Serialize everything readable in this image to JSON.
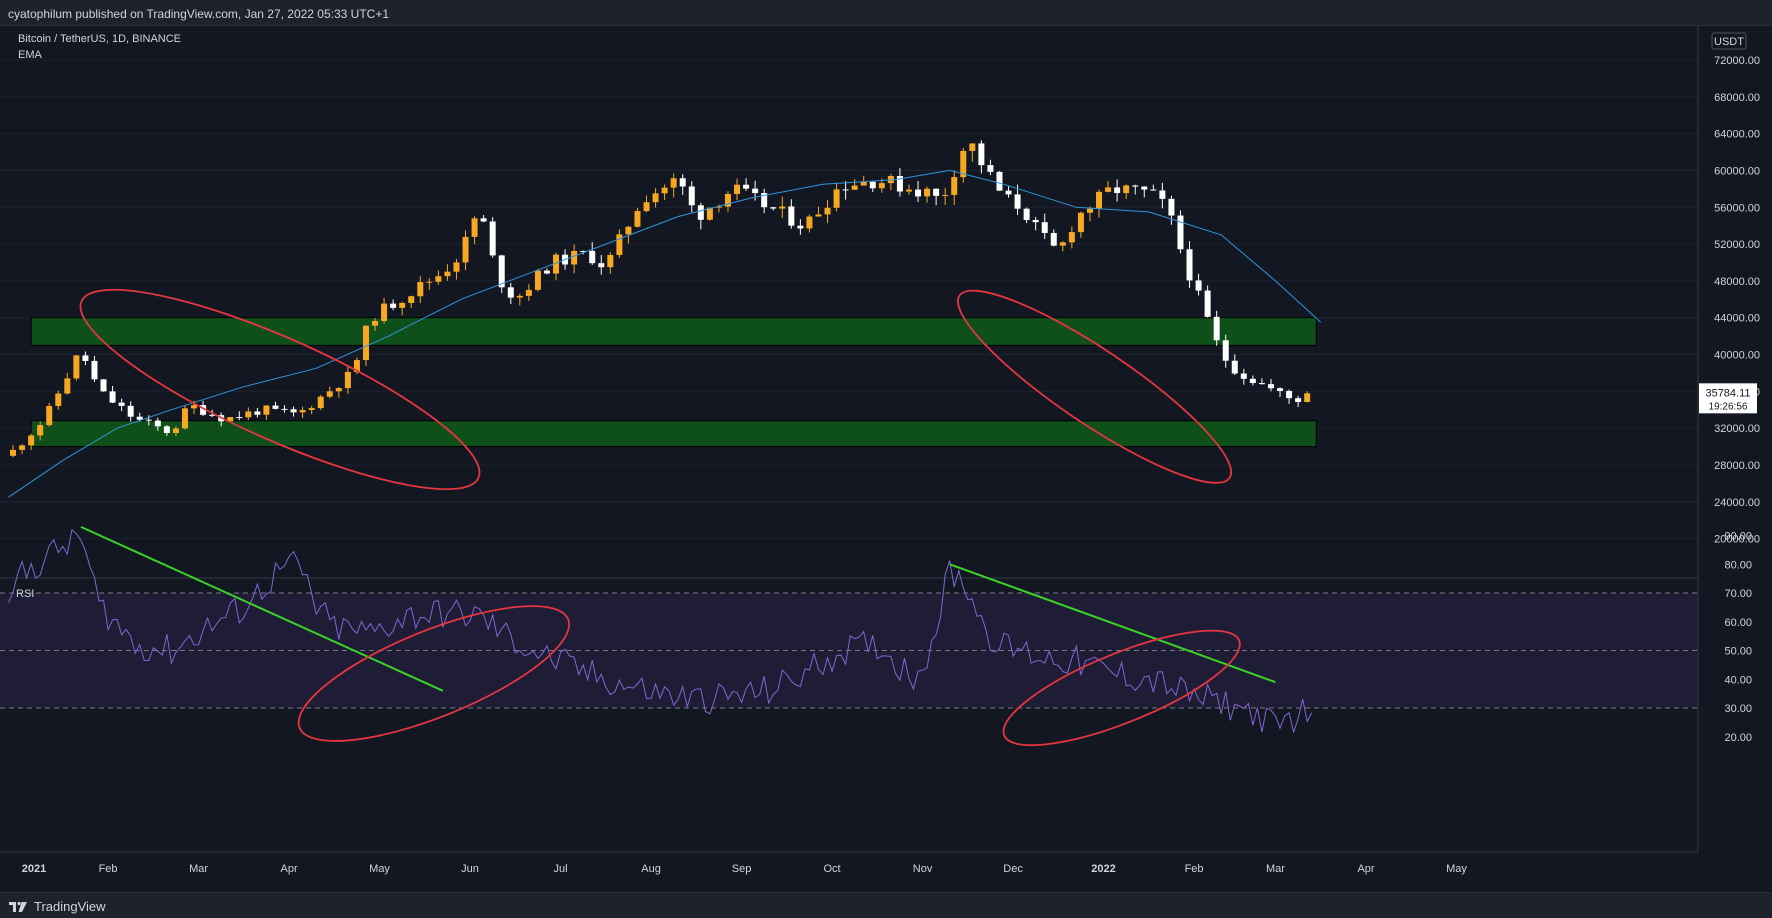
{
  "header": {
    "publisher_text": "cyatophilum published on TradingView.com, Jan 27, 2022 05:33 UTC+1"
  },
  "footer": {
    "brand": "TradingView"
  },
  "chart_data": [
    {
      "type": "candlestick",
      "symbol_label": "Bitcoin / TetherUS, 1D, BINANCE",
      "indicator_label": "EMA",
      "currency_label": "USDT",
      "ylim": [
        18000,
        74000
      ],
      "y_ticks": [
        20000,
        24000,
        28000,
        32000,
        36000,
        40000,
        44000,
        48000,
        52000,
        56000,
        60000,
        64000,
        68000,
        72000
      ],
      "y_tick_labels": [
        "20000.00",
        "24000.00",
        "28000.00",
        "32000.00",
        "36000.00",
        "40000.00",
        "44000.00",
        "48000.00",
        "52000.00",
        "56000.00",
        "60000.00",
        "64000.00",
        "68000.00",
        "72000.00"
      ],
      "x_range_days": [
        -3,
        145
      ],
      "price_path": [
        [
          0,
          29000
        ],
        [
          4,
          33000
        ],
        [
          8,
          40500
        ],
        [
          10,
          36000
        ],
        [
          14,
          33000
        ],
        [
          18,
          31500
        ],
        [
          20,
          34500
        ],
        [
          24,
          33000
        ],
        [
          28,
          34000
        ],
        [
          32,
          33500
        ],
        [
          38,
          38000
        ],
        [
          40,
          44000
        ],
        [
          44,
          46500
        ],
        [
          48,
          49000
        ],
        [
          50,
          51000
        ],
        [
          52,
          56000
        ],
        [
          54,
          48500
        ],
        [
          56,
          46000
        ],
        [
          58,
          48000
        ],
        [
          60,
          50000
        ],
        [
          64,
          51000
        ],
        [
          66,
          49500
        ],
        [
          70,
          57000
        ],
        [
          74,
          59000
        ],
        [
          76,
          55000
        ],
        [
          80,
          58000
        ],
        [
          84,
          56000
        ],
        [
          88,
          54000
        ],
        [
          92,
          58500
        ],
        [
          96,
          59000
        ],
        [
          100,
          58000
        ],
        [
          102,
          57500
        ],
        [
          103,
          56500
        ],
        [
          104,
          59000
        ],
        [
          106,
          63500
        ],
        [
          108,
          60000
        ],
        [
          110,
          57000
        ],
        [
          112,
          56000
        ],
        [
          114,
          53000
        ],
        [
          116,
          51000
        ],
        [
          118,
          55000
        ],
        [
          120,
          56500
        ],
        [
          122,
          58000
        ],
        [
          126,
          57500
        ],
        [
          128,
          56000
        ],
        [
          130,
          50000
        ],
        [
          132,
          45000
        ],
        [
          134,
          40000
        ],
        [
          136,
          38000
        ],
        [
          138,
          37000
        ],
        [
          140,
          36000
        ],
        [
          142,
          35000
        ],
        [
          144,
          35600
        ]
      ],
      "ema_path": [
        [
          0,
          24500
        ],
        [
          6,
          28500
        ],
        [
          12,
          32000
        ],
        [
          18,
          34000
        ],
        [
          26,
          36500
        ],
        [
          34,
          38500
        ],
        [
          42,
          42000
        ],
        [
          50,
          46000
        ],
        [
          58,
          49000
        ],
        [
          66,
          52000
        ],
        [
          74,
          55000
        ],
        [
          82,
          57000
        ],
        [
          90,
          58500
        ],
        [
          98,
          59000
        ],
        [
          104,
          60000
        ],
        [
          110,
          58500
        ],
        [
          118,
          56000
        ],
        [
          126,
          55500
        ],
        [
          134,
          53000
        ],
        [
          140,
          48000
        ],
        [
          145,
          43500
        ]
      ],
      "last_price": {
        "value": 35784.11,
        "label": "35784.11",
        "countdown": "19:26:56"
      },
      "support_zones": [
        {
          "low": 41000,
          "high": 44000,
          "color": "#0f4f1a"
        },
        {
          "low": 30000,
          "high": 32800,
          "color": "#0f4f1a"
        }
      ],
      "annotation_ellipses": [
        {
          "cx_day": 30,
          "cy_price": 36200,
          "rx_days": 24,
          "ry_price": 5500,
          "rotation": 24,
          "color": "#e5363f"
        },
        {
          "cx_day": 120,
          "cy_price": 36500,
          "rx_days": 18,
          "ry_price": 4000,
          "rotation": 34,
          "color": "#e5363f"
        }
      ],
      "colors": {
        "bull": "#f7a823",
        "bear": "#ffffff",
        "ema": "#2f95dc"
      }
    },
    {
      "type": "line",
      "indicator_label": "RSI",
      "ylim": [
        15,
        95
      ],
      "y_ticks": [
        20,
        30,
        40,
        50,
        60,
        70,
        80,
        90
      ],
      "y_tick_labels": [
        "20.00",
        "30.00",
        "40.00",
        "50.00",
        "60.00",
        "70.00",
        "80.00",
        "90.00"
      ],
      "band": [
        30,
        70
      ],
      "midline": 50,
      "rsi_path": [
        [
          0,
          72
        ],
        [
          4,
          82
        ],
        [
          8,
          90
        ],
        [
          10,
          66
        ],
        [
          14,
          52
        ],
        [
          18,
          50
        ],
        [
          22,
          58
        ],
        [
          26,
          65
        ],
        [
          30,
          78
        ],
        [
          32,
          80
        ],
        [
          34,
          65
        ],
        [
          36,
          58
        ],
        [
          40,
          56
        ],
        [
          44,
          62
        ],
        [
          48,
          63
        ],
        [
          52,
          62
        ],
        [
          56,
          53
        ],
        [
          60,
          47
        ],
        [
          64,
          42
        ],
        [
          68,
          38
        ],
        [
          72,
          35
        ],
        [
          76,
          33
        ],
        [
          80,
          34
        ],
        [
          84,
          36
        ],
        [
          88,
          42
        ],
        [
          92,
          50
        ],
        [
          96,
          52
        ],
        [
          98,
          46
        ],
        [
          100,
          41
        ],
        [
          102,
          52
        ],
        [
          104,
          78
        ],
        [
          106,
          72
        ],
        [
          108,
          57
        ],
        [
          110,
          51
        ],
        [
          112,
          50
        ],
        [
          114,
          48
        ],
        [
          116,
          47
        ],
        [
          118,
          46
        ],
        [
          120,
          44
        ],
        [
          122,
          42
        ],
        [
          124,
          41
        ],
        [
          126,
          40
        ],
        [
          128,
          38
        ],
        [
          130,
          35
        ],
        [
          132,
          33
        ],
        [
          134,
          32
        ],
        [
          136,
          30
        ],
        [
          138,
          28
        ],
        [
          140,
          23
        ],
        [
          142,
          27
        ],
        [
          144,
          30
        ]
      ],
      "trend_lines": [
        {
          "from": [
            8,
            93
          ],
          "to": [
            48,
            36
          ],
          "color": "#3bd227"
        },
        {
          "from": [
            104,
            80
          ],
          "to": [
            140,
            39
          ],
          "color": "#3bd227"
        }
      ],
      "annotation_ellipses": [
        {
          "cx_day": 47,
          "cy_rsi": 42,
          "rx_days": 16,
          "ry_rsi": 15,
          "rotation": -22,
          "color": "#e5363f"
        },
        {
          "cx_day": 123,
          "cy_rsi": 37,
          "rx_days": 14,
          "ry_rsi": 12,
          "rotation": -22,
          "color": "#e5363f"
        }
      ],
      "colors": {
        "line": "#8366d3",
        "band_fill": "#1f1c36",
        "level_line": "#787b86"
      }
    }
  ],
  "x_axis": {
    "ticks": [
      {
        "day": 0,
        "label": "2021",
        "bold": true
      },
      {
        "day": 11,
        "label": "Feb"
      },
      {
        "day": 21,
        "label": "Mar"
      },
      {
        "day": 31,
        "label": "Apr"
      },
      {
        "day": 41,
        "label": "May"
      },
      {
        "day": 51,
        "label": "Jun"
      },
      {
        "day": 61,
        "label": "Jul"
      },
      {
        "day": 71,
        "label": "Aug"
      },
      {
        "day": 81,
        "label": "Sep"
      },
      {
        "day": 91,
        "label": "Oct"
      },
      {
        "day": 101,
        "label": "Nov"
      },
      {
        "day": 111,
        "label": "Dec"
      },
      {
        "day": 121,
        "label": "2022",
        "bold": true
      },
      {
        "day": 131,
        "label": "Feb"
      },
      {
        "day": 140,
        "label": "Mar"
      },
      {
        "day": 150,
        "label": "Apr"
      },
      {
        "day": 160,
        "label": "May"
      }
    ]
  }
}
